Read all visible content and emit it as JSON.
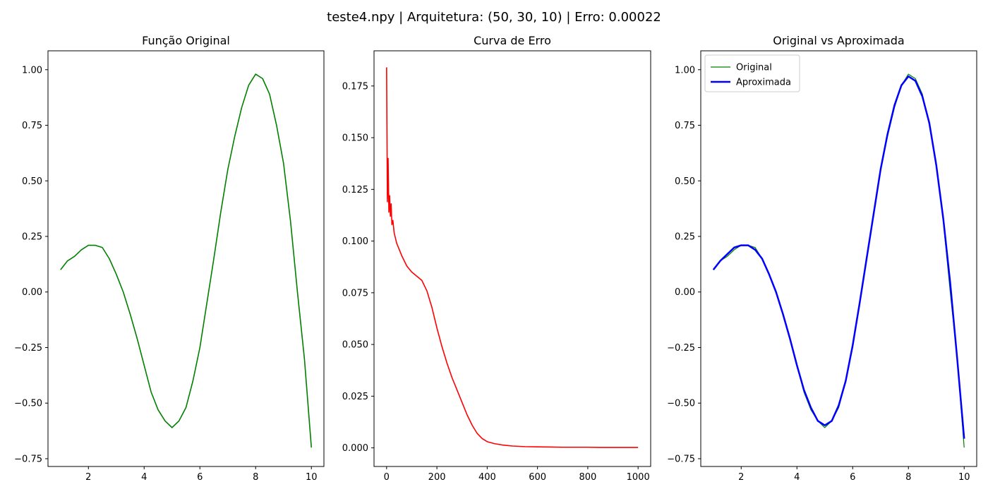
{
  "suptitle": "teste4.npy | Arquitetura: (50, 30, 10) | Erro: 0.00022",
  "chart_data": [
    {
      "type": "line",
      "title": "Função Original",
      "xlabel": "",
      "ylabel": "",
      "xlim": [
        0.55,
        10.45
      ],
      "ylim": [
        -0.785,
        1.085
      ],
      "xticks": [
        2,
        4,
        6,
        8,
        10
      ],
      "yticks": [
        -0.75,
        -0.5,
        -0.25,
        0.0,
        0.25,
        0.5,
        0.75,
        1.0
      ],
      "ytick_labels": [
        "−0.75",
        "−0.50",
        "−0.25",
        "0.00",
        "0.25",
        "0.50",
        "0.75",
        "1.00"
      ],
      "grid": false,
      "series": [
        {
          "color": "#008000",
          "x": [
            1.0,
            1.25,
            1.5,
            1.75,
            2.0,
            2.25,
            2.5,
            2.75,
            3.0,
            3.25,
            3.5,
            3.75,
            4.0,
            4.25,
            4.5,
            4.75,
            5.0,
            5.25,
            5.5,
            5.75,
            6.0,
            6.25,
            6.5,
            6.75,
            7.0,
            7.25,
            7.5,
            7.75,
            8.0,
            8.25,
            8.5,
            8.75,
            9.0,
            9.25,
            9.5,
            9.75,
            10.0
          ],
          "y": [
            0.1,
            0.14,
            0.16,
            0.19,
            0.21,
            0.21,
            0.2,
            0.15,
            0.08,
            0.0,
            -0.1,
            -0.21,
            -0.33,
            -0.45,
            -0.53,
            -0.58,
            -0.61,
            -0.58,
            -0.52,
            -0.4,
            -0.25,
            -0.05,
            0.15,
            0.36,
            0.55,
            0.7,
            0.83,
            0.93,
            0.98,
            0.96,
            0.89,
            0.75,
            0.58,
            0.32,
            0.0,
            -0.3,
            -0.7
          ]
        }
      ]
    },
    {
      "type": "line",
      "title": "Curva de Erro",
      "xlabel": "",
      "ylabel": "",
      "xlim": [
        -50,
        1050
      ],
      "ylim": [
        -0.009,
        0.192
      ],
      "xticks": [
        0,
        200,
        400,
        600,
        800,
        1000
      ],
      "yticks": [
        0.0,
        0.025,
        0.05,
        0.075,
        0.1,
        0.125,
        0.15,
        0.175
      ],
      "ytick_labels": [
        "0.000",
        "0.025",
        "0.050",
        "0.075",
        "0.100",
        "0.125",
        "0.150",
        "0.175"
      ],
      "grid": false,
      "series": [
        {
          "color": "#ff0000",
          "x": [
            0,
            3,
            6,
            9,
            12,
            15,
            18,
            21,
            25,
            30,
            40,
            50,
            60,
            80,
            100,
            120,
            140,
            160,
            180,
            200,
            220,
            240,
            260,
            280,
            300,
            320,
            340,
            360,
            380,
            400,
            430,
            460,
            500,
            550,
            600,
            650,
            700,
            750,
            800,
            850,
            900,
            950,
            1000
          ],
          "y": [
            0.184,
            0.119,
            0.14,
            0.114,
            0.122,
            0.112,
            0.118,
            0.108,
            0.11,
            0.104,
            0.099,
            0.096,
            0.093,
            0.088,
            0.085,
            0.083,
            0.081,
            0.076,
            0.068,
            0.058,
            0.049,
            0.041,
            0.034,
            0.028,
            0.022,
            0.016,
            0.011,
            0.007,
            0.0045,
            0.003,
            0.002,
            0.0014,
            0.0009,
            0.0006,
            0.0005,
            0.0004,
            0.0003,
            0.0003,
            0.0003,
            0.0002,
            0.0002,
            0.0002,
            0.0002
          ]
        }
      ]
    },
    {
      "type": "line",
      "title": "Original vs Aproximada",
      "xlabel": "",
      "ylabel": "",
      "xlim": [
        0.55,
        10.45
      ],
      "ylim": [
        -0.785,
        1.085
      ],
      "xticks": [
        2,
        4,
        6,
        8,
        10
      ],
      "yticks": [
        -0.75,
        -0.5,
        -0.25,
        0.0,
        0.25,
        0.5,
        0.75,
        1.0
      ],
      "ytick_labels": [
        "−0.75",
        "−0.50",
        "−0.25",
        "0.00",
        "0.25",
        "0.50",
        "0.75",
        "1.00"
      ],
      "grid": false,
      "legend_position": "upper-left",
      "series": [
        {
          "name": "Original",
          "color": "#008000",
          "x": [
            1.0,
            1.25,
            1.5,
            1.75,
            2.0,
            2.25,
            2.5,
            2.75,
            3.0,
            3.25,
            3.5,
            3.75,
            4.0,
            4.25,
            4.5,
            4.75,
            5.0,
            5.25,
            5.5,
            5.75,
            6.0,
            6.25,
            6.5,
            6.75,
            7.0,
            7.25,
            7.5,
            7.75,
            8.0,
            8.25,
            8.5,
            8.75,
            9.0,
            9.25,
            9.5,
            9.75,
            10.0
          ],
          "y": [
            0.1,
            0.14,
            0.16,
            0.19,
            0.21,
            0.21,
            0.2,
            0.15,
            0.08,
            0.0,
            -0.1,
            -0.21,
            -0.33,
            -0.45,
            -0.53,
            -0.58,
            -0.61,
            -0.58,
            -0.52,
            -0.4,
            -0.25,
            -0.05,
            0.15,
            0.36,
            0.55,
            0.7,
            0.83,
            0.93,
            0.98,
            0.96,
            0.89,
            0.75,
            0.58,
            0.32,
            0.0,
            -0.3,
            -0.7
          ]
        },
        {
          "name": "Aproximada",
          "color": "#0000ff",
          "x": [
            1.0,
            1.25,
            1.5,
            1.75,
            2.0,
            2.25,
            2.5,
            2.75,
            3.0,
            3.25,
            3.5,
            3.75,
            4.0,
            4.25,
            4.5,
            4.75,
            5.0,
            5.25,
            5.5,
            5.75,
            6.0,
            6.25,
            6.5,
            6.75,
            7.0,
            7.25,
            7.5,
            7.75,
            8.0,
            8.25,
            8.5,
            8.75,
            9.0,
            9.25,
            9.5,
            9.75,
            10.0
          ],
          "y": [
            0.1,
            0.14,
            0.17,
            0.2,
            0.21,
            0.21,
            0.19,
            0.15,
            0.08,
            0.0,
            -0.1,
            -0.21,
            -0.33,
            -0.44,
            -0.52,
            -0.58,
            -0.6,
            -0.58,
            -0.51,
            -0.4,
            -0.24,
            -0.05,
            0.15,
            0.35,
            0.55,
            0.71,
            0.84,
            0.93,
            0.97,
            0.95,
            0.88,
            0.76,
            0.57,
            0.33,
            0.04,
            -0.3,
            -0.66
          ]
        }
      ]
    }
  ]
}
